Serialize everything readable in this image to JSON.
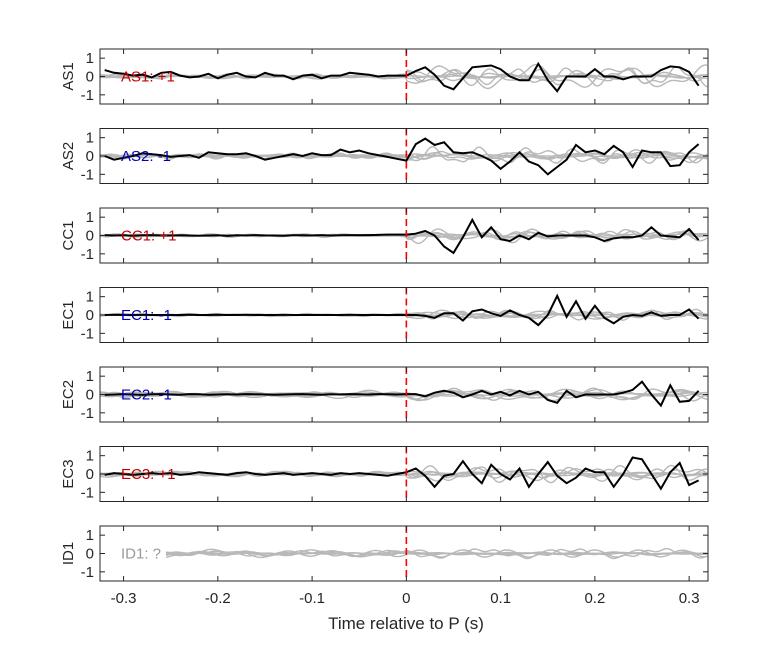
{
  "chart_data": {
    "type": "line",
    "xlabel": "Time relative to P (s)",
    "xlim": [
      -0.325,
      0.32
    ],
    "xticks": [
      -0.3,
      -0.2,
      -0.1,
      0,
      0.1,
      0.2,
      0.3
    ],
    "xtick_labels": [
      "-0.3",
      "-0.2",
      "-0.1",
      "0",
      "0.1",
      "0.2",
      "0.3"
    ],
    "ylim": [
      -1.5,
      1.5
    ],
    "yticks": [
      1,
      0,
      -1
    ],
    "ytick_labels": [
      "1",
      "0",
      "-1"
    ],
    "marker_line": {
      "x": 0,
      "color": "#ff0000",
      "style": "dashed"
    },
    "panels": [
      {
        "ylabel": "AS1",
        "annotation": "AS1: +1",
        "annotation_color": "#c00000",
        "seed": 11,
        "pre_amp": 0.22,
        "post_amp": 0.75,
        "x": [
          -0.32,
          -0.31,
          -0.3,
          -0.29,
          -0.28,
          -0.27,
          -0.26,
          -0.25,
          -0.24,
          -0.23,
          -0.22,
          -0.21,
          -0.2,
          -0.19,
          -0.18,
          -0.17,
          -0.16,
          -0.15,
          -0.14,
          -0.13,
          -0.12,
          -0.11,
          -0.1,
          -0.09,
          -0.08,
          -0.07,
          -0.06,
          -0.05,
          -0.04,
          -0.03,
          -0.02,
          -0.01,
          0.0,
          0.01,
          0.02,
          0.03,
          0.04,
          0.05,
          0.06,
          0.07,
          0.08,
          0.09,
          0.1,
          0.11,
          0.12,
          0.13,
          0.14,
          0.15,
          0.16,
          0.17,
          0.18,
          0.19,
          0.2,
          0.21,
          0.22,
          0.23,
          0.24,
          0.25,
          0.26,
          0.27,
          0.28,
          0.29,
          0.3,
          0.31
        ],
        "y": [
          0.35,
          0.2,
          0.15,
          0.05,
          0.1,
          -0.05,
          0.2,
          0.25,
          0.05,
          -0.05,
          0.0,
          0.15,
          -0.1,
          0.1,
          0.2,
          0.0,
          -0.05,
          0.2,
          0.05,
          0.05,
          -0.15,
          0.05,
          0.1,
          -0.1,
          0.05,
          0.05,
          0.2,
          0.15,
          0.1,
          0.0,
          0.05,
          0.05,
          0.05,
          0.3,
          0.5,
          0.1,
          -0.5,
          -0.7,
          -0.1,
          0.5,
          0.55,
          0.6,
          0.4,
          0.0,
          -0.2,
          -0.2,
          0.7,
          -0.2,
          -0.8,
          0.0,
          0.0,
          0.0,
          0.4,
          0.0,
          0.0,
          -0.15,
          0.0,
          0.0,
          0.0,
          0.35,
          0.55,
          0.5,
          0.25,
          -0.5
        ]
      },
      {
        "ylabel": "AS2",
        "annotation": "AS2: -1",
        "annotation_color": "#0000b0",
        "seed": 23,
        "pre_amp": 0.2,
        "post_amp": 0.6,
        "x": [
          -0.32,
          -0.31,
          -0.3,
          -0.29,
          -0.28,
          -0.27,
          -0.26,
          -0.25,
          -0.24,
          -0.23,
          -0.22,
          -0.21,
          -0.2,
          -0.19,
          -0.18,
          -0.17,
          -0.16,
          -0.15,
          -0.14,
          -0.13,
          -0.12,
          -0.11,
          -0.1,
          -0.09,
          -0.08,
          -0.07,
          -0.06,
          -0.05,
          -0.04,
          -0.03,
          -0.02,
          -0.01,
          0.0,
          0.01,
          0.02,
          0.03,
          0.04,
          0.05,
          0.06,
          0.07,
          0.08,
          0.09,
          0.1,
          0.11,
          0.12,
          0.13,
          0.14,
          0.15,
          0.16,
          0.17,
          0.18,
          0.19,
          0.2,
          0.21,
          0.22,
          0.23,
          0.24,
          0.25,
          0.26,
          0.27,
          0.28,
          0.29,
          0.3,
          0.31
        ],
        "y": [
          0.0,
          -0.2,
          -0.1,
          0.0,
          0.15,
          0.1,
          0.05,
          -0.05,
          0.0,
          0.05,
          -0.1,
          0.2,
          0.15,
          0.1,
          0.1,
          0.15,
          0.0,
          -0.2,
          -0.1,
          0.0,
          0.1,
          0.0,
          0.15,
          0.05,
          0.05,
          0.35,
          0.2,
          0.3,
          0.15,
          0.05,
          -0.05,
          -0.15,
          -0.25,
          0.65,
          0.95,
          0.6,
          0.75,
          0.2,
          0.15,
          0.2,
          0.0,
          -0.25,
          -0.7,
          -0.3,
          0.2,
          -0.3,
          -0.5,
          -1.0,
          -0.6,
          -0.2,
          0.6,
          0.2,
          0.3,
          0.1,
          0.55,
          0.2,
          -0.6,
          0.3,
          0.2,
          0.2,
          -0.55,
          -0.5,
          0.2,
          0.65
        ]
      },
      {
        "ylabel": "CC1",
        "annotation": "CC1: +1",
        "annotation_color": "#c00000",
        "seed": 37,
        "pre_amp": 0.1,
        "post_amp": 0.5,
        "x": [
          -0.32,
          -0.31,
          -0.3,
          -0.29,
          -0.28,
          -0.27,
          -0.26,
          -0.25,
          -0.24,
          -0.23,
          -0.22,
          -0.21,
          -0.2,
          -0.19,
          -0.18,
          -0.17,
          -0.16,
          -0.15,
          -0.14,
          -0.13,
          -0.12,
          -0.11,
          -0.1,
          -0.09,
          -0.08,
          -0.07,
          -0.06,
          -0.05,
          -0.04,
          -0.03,
          -0.02,
          -0.01,
          0.0,
          0.01,
          0.02,
          0.03,
          0.04,
          0.05,
          0.06,
          0.07,
          0.08,
          0.09,
          0.1,
          0.11,
          0.12,
          0.13,
          0.14,
          0.15,
          0.16,
          0.17,
          0.18,
          0.19,
          0.2,
          0.21,
          0.22,
          0.23,
          0.24,
          0.25,
          0.26,
          0.27,
          0.28,
          0.29,
          0.3,
          0.31
        ],
        "y": [
          0.02,
          0.0,
          0.01,
          -0.01,
          0.01,
          0.02,
          0.0,
          0.0,
          0.01,
          0.0,
          -0.01,
          0.0,
          0.01,
          -0.02,
          0.01,
          0.0,
          0.02,
          0.0,
          0.0,
          -0.01,
          0.01,
          0.01,
          0.0,
          0.02,
          0.0,
          0.01,
          0.02,
          0.02,
          0.02,
          0.03,
          0.05,
          0.05,
          0.05,
          0.1,
          0.25,
          0.0,
          -0.6,
          -0.95,
          -0.1,
          0.85,
          -0.1,
          0.45,
          -0.2,
          -0.3,
          0.0,
          -0.2,
          0.15,
          -0.05,
          0.0,
          0.0,
          0.0,
          0.0,
          -0.1,
          -0.3,
          -0.15,
          -0.1,
          -0.1,
          0.0,
          0.45,
          0.0,
          -0.05,
          -0.1,
          0.35,
          -0.25
        ]
      },
      {
        "ylabel": "EC1",
        "annotation": "EC1: -1",
        "annotation_color": "#0000b0",
        "seed": 41,
        "pre_amp": 0.1,
        "post_amp": 0.45,
        "x": [
          -0.32,
          -0.31,
          -0.3,
          -0.29,
          -0.28,
          -0.27,
          -0.26,
          -0.25,
          -0.24,
          -0.23,
          -0.22,
          -0.21,
          -0.2,
          -0.19,
          -0.18,
          -0.17,
          -0.16,
          -0.15,
          -0.14,
          -0.13,
          -0.12,
          -0.11,
          -0.1,
          -0.09,
          -0.08,
          -0.07,
          -0.06,
          -0.05,
          -0.04,
          -0.03,
          -0.02,
          -0.01,
          0.0,
          0.01,
          0.02,
          0.03,
          0.04,
          0.05,
          0.06,
          0.07,
          0.08,
          0.09,
          0.1,
          0.11,
          0.12,
          0.13,
          0.14,
          0.15,
          0.16,
          0.17,
          0.18,
          0.19,
          0.2,
          0.21,
          0.22,
          0.23,
          0.24,
          0.25,
          0.26,
          0.27,
          0.28,
          0.29,
          0.3,
          0.31
        ],
        "y": [
          0.0,
          0.01,
          0.0,
          0.0,
          0.01,
          0.0,
          0.0,
          0.0,
          0.0,
          0.01,
          0.0,
          0.0,
          0.01,
          0.0,
          0.0,
          0.01,
          0.0,
          0.0,
          0.0,
          0.01,
          0.0,
          0.0,
          0.0,
          0.0,
          0.0,
          0.0,
          0.01,
          0.0,
          0.0,
          0.0,
          0.0,
          0.0,
          0.0,
          0.0,
          -0.05,
          -0.15,
          0.1,
          0.1,
          -0.3,
          0.2,
          0.3,
          0.1,
          -0.05,
          0.25,
          0.0,
          -0.15,
          -0.55,
          0.0,
          1.05,
          -0.1,
          0.75,
          -0.2,
          0.5,
          -0.15,
          -0.45,
          -0.1,
          0.0,
          -0.05,
          0.15,
          -0.05,
          0.0,
          0.0,
          0.3,
          -0.2
        ]
      },
      {
        "ylabel": "EC2",
        "annotation": "EC2: -1",
        "annotation_color": "#0000b0",
        "seed": 53,
        "pre_amp": 0.45,
        "post_amp": 0.55,
        "x": [
          -0.32,
          -0.31,
          -0.3,
          -0.29,
          -0.28,
          -0.27,
          -0.26,
          -0.25,
          -0.24,
          -0.23,
          -0.22,
          -0.21,
          -0.2,
          -0.19,
          -0.18,
          -0.17,
          -0.16,
          -0.15,
          -0.14,
          -0.13,
          -0.12,
          -0.11,
          -0.1,
          -0.09,
          -0.08,
          -0.07,
          -0.06,
          -0.05,
          -0.04,
          -0.03,
          -0.02,
          -0.01,
          0.0,
          0.01,
          0.02,
          0.03,
          0.04,
          0.05,
          0.06,
          0.07,
          0.08,
          0.09,
          0.1,
          0.11,
          0.12,
          0.13,
          0.14,
          0.15,
          0.16,
          0.17,
          0.18,
          0.19,
          0.2,
          0.21,
          0.22,
          0.23,
          0.24,
          0.25,
          0.26,
          0.27,
          0.28,
          0.29,
          0.3,
          0.31
        ],
        "y": [
          -0.02,
          0.0,
          0.02,
          0.0,
          -0.02,
          0.01,
          0.02,
          0.0,
          -0.01,
          0.02,
          0.01,
          -0.01,
          0.0,
          0.01,
          0.0,
          0.02,
          0.01,
          0.0,
          -0.01,
          0.0,
          0.01,
          0.02,
          0.0,
          -0.01,
          0.01,
          0.0,
          0.02,
          0.01,
          0.0,
          0.02,
          0.01,
          0.0,
          0.02,
          0.02,
          -0.1,
          0.1,
          0.2,
          0.1,
          -0.15,
          0.0,
          0.2,
          0.0,
          0.15,
          -0.05,
          0.2,
          0.0,
          0.15,
          -0.3,
          -0.45,
          0.2,
          -0.15,
          0.0,
          0.0,
          0.0,
          0.0,
          0.1,
          0.25,
          0.7,
          0.0,
          -0.6,
          0.5,
          -0.4,
          -0.35,
          0.2
        ]
      },
      {
        "ylabel": "EC3",
        "annotation": "EC3: +1",
        "annotation_color": "#c00000",
        "seed": 67,
        "pre_amp": 0.3,
        "post_amp": 0.6,
        "x": [
          -0.32,
          -0.31,
          -0.3,
          -0.29,
          -0.28,
          -0.27,
          -0.26,
          -0.25,
          -0.24,
          -0.23,
          -0.22,
          -0.21,
          -0.2,
          -0.19,
          -0.18,
          -0.17,
          -0.16,
          -0.15,
          -0.14,
          -0.13,
          -0.12,
          -0.11,
          -0.1,
          -0.09,
          -0.08,
          -0.07,
          -0.06,
          -0.05,
          -0.04,
          -0.03,
          -0.02,
          -0.01,
          0.0,
          0.01,
          0.02,
          0.03,
          0.04,
          0.05,
          0.06,
          0.07,
          0.08,
          0.09,
          0.1,
          0.11,
          0.12,
          0.13,
          0.14,
          0.15,
          0.16,
          0.17,
          0.18,
          0.19,
          0.2,
          0.21,
          0.22,
          0.23,
          0.24,
          0.25,
          0.26,
          0.27,
          0.28,
          0.29,
          0.3,
          0.31
        ],
        "y": [
          -0.05,
          0.05,
          0.0,
          -0.05,
          0.0,
          0.05,
          0.0,
          0.05,
          -0.05,
          0.0,
          0.1,
          0.05,
          0.0,
          -0.05,
          0.05,
          0.1,
          0.0,
          -0.05,
          0.0,
          0.05,
          -0.05,
          0.0,
          0.05,
          0.0,
          -0.05,
          0.05,
          0.0,
          0.05,
          0.0,
          -0.05,
          -0.1,
          0.0,
          0.1,
          0.3,
          -0.1,
          -0.7,
          -0.1,
          0.0,
          0.7,
          0.0,
          -0.5,
          0.5,
          0.0,
          -0.3,
          0.3,
          -0.7,
          0.0,
          0.65,
          -0.1,
          -0.5,
          -0.2,
          0.3,
          0.1,
          0.1,
          -0.7,
          0.0,
          0.9,
          0.8,
          0.0,
          -0.8,
          0.1,
          0.6,
          -0.6,
          -0.35
        ]
      },
      {
        "ylabel": "ID1",
        "annotation": "ID1: ?",
        "annotation_color": "#999999",
        "seed": 79,
        "pre_amp": 0.35,
        "post_amp": 0.3,
        "x": [],
        "y": []
      }
    ]
  }
}
